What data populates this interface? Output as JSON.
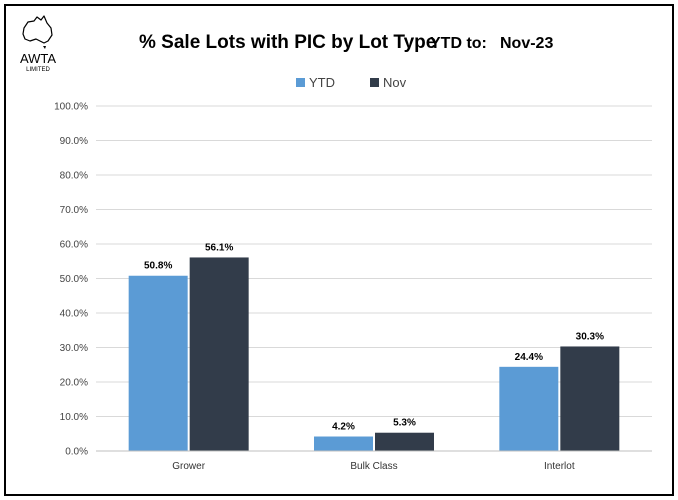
{
  "logo": {
    "name": "awta-australia-logo",
    "line1": "AWTA",
    "line2": "LIMITED"
  },
  "title": {
    "main": "% Sale Lots with PIC by Lot Type",
    "period_label": "YTD to:",
    "period_value": "Nov-23"
  },
  "colors": {
    "ytd": "#5B9BD5",
    "nov": "#323C4A",
    "grid": "#D9D9D9",
    "axis": "#BFBFBF"
  },
  "chart_data": {
    "type": "bar",
    "categories": [
      "Grower",
      "Bulk Class",
      "Interlot"
    ],
    "series": [
      {
        "name": "YTD",
        "values": [
          50.8,
          4.2,
          24.4
        ],
        "labels": [
          "50.8%",
          "4.2%",
          "24.4%"
        ]
      },
      {
        "name": "Nov",
        "values": [
          56.1,
          5.3,
          30.3
        ],
        "labels": [
          "56.1%",
          "5.3%",
          "30.3%"
        ]
      }
    ],
    "ylim": [
      0,
      100
    ],
    "yticks": [
      "0.0%",
      "10.0%",
      "20.0%",
      "30.0%",
      "40.0%",
      "50.0%",
      "60.0%",
      "70.0%",
      "80.0%",
      "90.0%",
      "100.0%"
    ],
    "grid": true,
    "legend_position": "top-center"
  }
}
